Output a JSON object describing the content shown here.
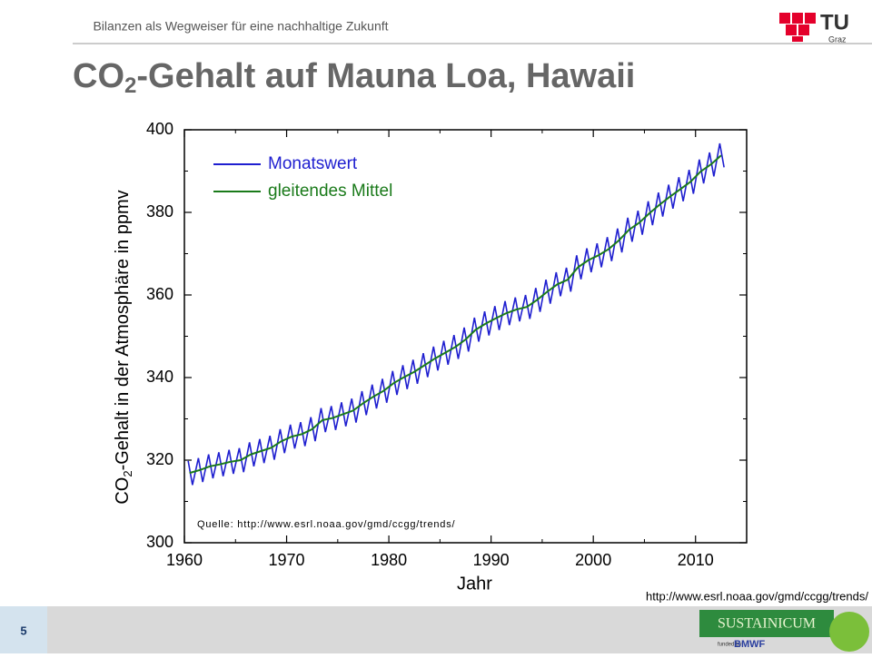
{
  "header": {
    "text": "Bilanzen als Wegweiser für eine nachhaltige Zukunft",
    "logo_top": "TU",
    "logo_bottom": "Graz"
  },
  "title": {
    "main": "CO",
    "sub": "2",
    "rest": "-Gehalt auf Mauna Loa, Hawaii"
  },
  "source": "http://www.esrl.noaa.gov/gmd/ccgg/trends/",
  "footer": {
    "page": "5",
    "logo": "SUSTAINICUM",
    "funded": "funded by",
    "ministry": "BMWF"
  },
  "chart_data": {
    "type": "line",
    "xlabel": "Jahr",
    "ylabel": {
      "main": "CO",
      "sub": "2",
      "rest": "-Gehalt in der Atmosphäre in ppmv"
    },
    "annotation": "Quelle: http://www.esrl.noaa.gov/gmd/ccgg/trends/",
    "xlim": [
      1960,
      2015
    ],
    "ylim": [
      300,
      400
    ],
    "xticks": [
      1960,
      1970,
      1980,
      1990,
      2000,
      2010
    ],
    "yticks": [
      300,
      320,
      340,
      360,
      380,
      400
    ],
    "xticks_minor": [
      1965,
      1975,
      1985,
      1995,
      2005,
      2015
    ],
    "yticks_minor": [
      310,
      330,
      350,
      370,
      390
    ],
    "legend": "upper left",
    "series": [
      {
        "name": "Monatswert",
        "color": "#1f1fd0",
        "x": [
          1960.37,
          1960.79,
          1961.37,
          1961.79,
          1962.37,
          1962.79,
          1963.37,
          1963.79,
          1964.37,
          1964.79,
          1965.37,
          1965.79,
          1966.37,
          1966.79,
          1967.37,
          1967.79,
          1968.37,
          1968.79,
          1969.37,
          1969.79,
          1970.37,
          1970.79,
          1971.37,
          1971.79,
          1972.37,
          1972.79,
          1973.37,
          1973.79,
          1974.37,
          1974.79,
          1975.37,
          1975.79,
          1976.37,
          1976.79,
          1977.37,
          1977.79,
          1978.37,
          1978.79,
          1979.37,
          1979.79,
          1980.37,
          1980.79,
          1981.37,
          1981.79,
          1982.37,
          1982.79,
          1983.37,
          1983.79,
          1984.37,
          1984.79,
          1985.37,
          1985.79,
          1986.37,
          1986.79,
          1987.37,
          1987.79,
          1988.37,
          1988.79,
          1989.37,
          1989.79,
          1990.37,
          1990.79,
          1991.37,
          1991.79,
          1992.37,
          1992.79,
          1993.37,
          1993.79,
          1994.37,
          1994.79,
          1995.37,
          1995.79,
          1996.37,
          1996.79,
          1997.37,
          1997.79,
          1998.37,
          1998.79,
          1999.37,
          1999.79,
          2000.37,
          2000.79,
          2001.37,
          2001.79,
          2002.37,
          2002.79,
          2003.37,
          2003.79,
          2004.37,
          2004.79,
          2005.37,
          2005.79,
          2006.37,
          2006.79,
          2007.37,
          2007.79,
          2008.37,
          2008.79,
          2009.37,
          2009.79,
          2010.37,
          2010.79,
          2011.37,
          2011.79,
          2012.37,
          2012.79
        ],
        "values": [
          319.8,
          314.0,
          320.5,
          314.7,
          321.4,
          315.6,
          321.9,
          316.1,
          322.5,
          316.7,
          322.9,
          317.1,
          324.3,
          318.5,
          325.1,
          319.3,
          325.9,
          320.1,
          327.5,
          321.7,
          328.6,
          322.8,
          329.2,
          323.4,
          330.4,
          324.6,
          332.6,
          326.8,
          333.1,
          327.3,
          334.0,
          328.2,
          334.9,
          329.1,
          336.7,
          330.9,
          338.3,
          332.5,
          339.7,
          333.9,
          341.6,
          335.8,
          343.0,
          337.2,
          344.3,
          338.5,
          345.9,
          340.1,
          347.5,
          341.7,
          348.9,
          343.1,
          350.3,
          344.5,
          352.1,
          346.3,
          354.5,
          348.7,
          356.0,
          350.2,
          357.3,
          351.5,
          358.5,
          352.7,
          359.4,
          353.6,
          360.0,
          354.2,
          361.7,
          355.9,
          363.7,
          357.9,
          365.5,
          359.7,
          366.6,
          360.8,
          369.6,
          363.8,
          371.3,
          365.5,
          372.5,
          366.7,
          374.0,
          368.2,
          376.1,
          370.3,
          378.7,
          372.9,
          380.4,
          374.6,
          382.7,
          376.9,
          384.8,
          379.0,
          386.7,
          380.9,
          388.5,
          382.7,
          390.3,
          384.5,
          392.8,
          387.0,
          394.5,
          388.7,
          396.7,
          390.9
        ]
      },
      {
        "name": "gleitendes Mittel",
        "color": "#1a7a1a",
        "x": [
          1960.5,
          1961.5,
          1962.5,
          1963.5,
          1964.5,
          1965.5,
          1966.5,
          1967.5,
          1968.5,
          1969.5,
          1970.5,
          1971.5,
          1972.5,
          1973.5,
          1974.5,
          1975.5,
          1976.5,
          1977.5,
          1978.5,
          1979.5,
          1980.5,
          1981.5,
          1982.5,
          1983.5,
          1984.5,
          1985.5,
          1986.5,
          1987.5,
          1988.5,
          1989.5,
          1990.5,
          1991.5,
          1992.5,
          1993.5,
          1994.5,
          1995.5,
          1996.5,
          1997.5,
          1998.5,
          1999.5,
          2000.5,
          2001.5,
          2002.5,
          2003.5,
          2004.5,
          2005.5,
          2006.5,
          2007.5,
          2008.5,
          2009.5,
          2010.5,
          2011.5,
          2012.5
        ],
        "values": [
          316.9,
          317.6,
          318.5,
          319.0,
          319.6,
          320.0,
          321.4,
          322.2,
          323.0,
          324.6,
          325.7,
          326.3,
          327.5,
          329.7,
          330.2,
          331.1,
          332.0,
          333.8,
          335.4,
          336.8,
          338.7,
          340.1,
          341.4,
          343.0,
          344.6,
          346.0,
          347.4,
          349.2,
          351.6,
          353.1,
          354.4,
          355.6,
          356.5,
          357.1,
          358.8,
          360.8,
          362.6,
          363.7,
          366.7,
          368.4,
          369.6,
          371.1,
          373.2,
          375.8,
          377.5,
          379.8,
          381.9,
          383.8,
          385.6,
          387.4,
          389.9,
          391.6,
          393.8
        ]
      }
    ]
  }
}
